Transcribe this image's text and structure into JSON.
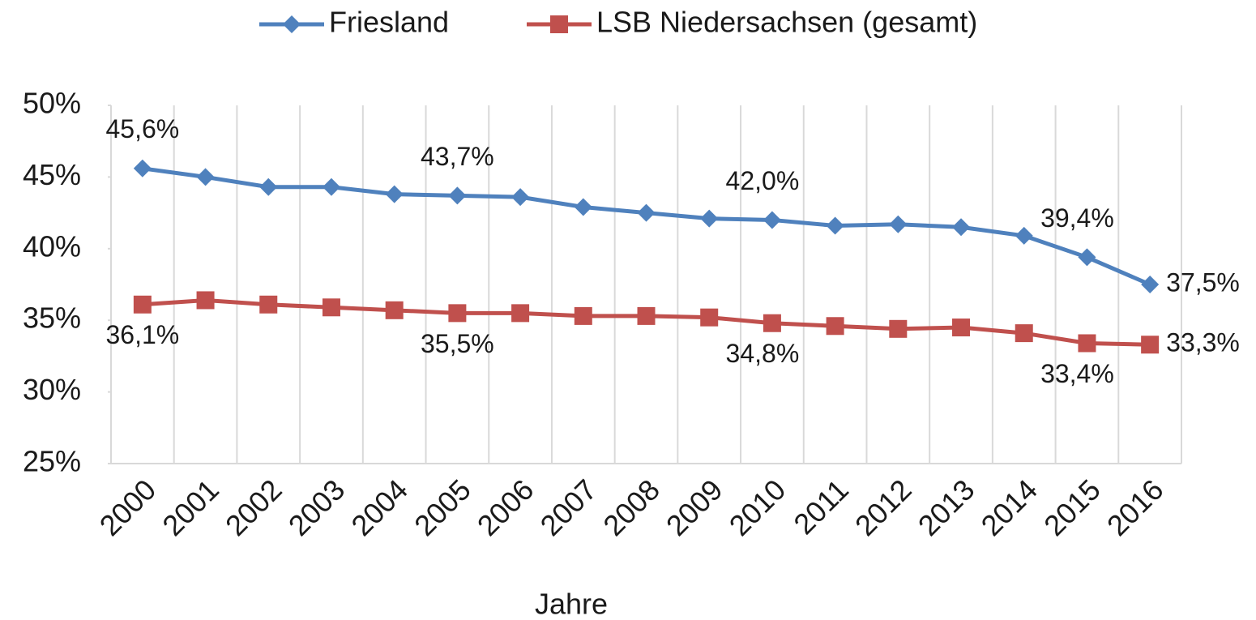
{
  "chart_data": {
    "type": "line",
    "x_label": "Jahre",
    "categories": [
      "2000",
      "2001",
      "2002",
      "2003",
      "2004",
      "2005",
      "2006",
      "2007",
      "2008",
      "2009",
      "2010",
      "2011",
      "2012",
      "2013",
      "2014",
      "2015",
      "2016"
    ],
    "series": [
      {
        "name": "Friesland",
        "color": "#4f81bd",
        "marker": "diamond",
        "values": [
          45.6,
          45.0,
          44.3,
          44.3,
          43.8,
          43.7,
          43.6,
          42.9,
          42.5,
          42.1,
          42.0,
          41.6,
          41.7,
          41.5,
          40.9,
          39.4,
          37.5
        ],
        "value_labels": [
          "45,6%",
          null,
          null,
          null,
          null,
          "43,7%",
          null,
          null,
          null,
          null,
          "42,0%",
          null,
          null,
          null,
          null,
          "39,4%",
          "37,5%"
        ]
      },
      {
        "name": "LSB Niedersachsen (gesamt)",
        "color": "#c0504d",
        "marker": "square",
        "values": [
          36.1,
          36.4,
          36.1,
          35.9,
          35.7,
          35.5,
          35.5,
          35.3,
          35.3,
          35.2,
          34.8,
          34.6,
          34.4,
          34.5,
          34.1,
          33.4,
          33.3
        ],
        "value_labels": [
          "36,1%",
          null,
          null,
          null,
          null,
          "35,5%",
          null,
          null,
          null,
          null,
          "34,8%",
          null,
          null,
          null,
          null,
          "33,4%",
          "33,3%"
        ]
      }
    ],
    "ylim": [
      25,
      50
    ],
    "yticks": [
      {
        "value": 25,
        "label": "25%"
      },
      {
        "value": 30,
        "label": "30%"
      },
      {
        "value": 35,
        "label": "35%"
      },
      {
        "value": 40,
        "label": "40%"
      },
      {
        "value": 45,
        "label": "45%"
      },
      {
        "value": 50,
        "label": "50%"
      }
    ],
    "legend": "top",
    "grid": "x"
  }
}
